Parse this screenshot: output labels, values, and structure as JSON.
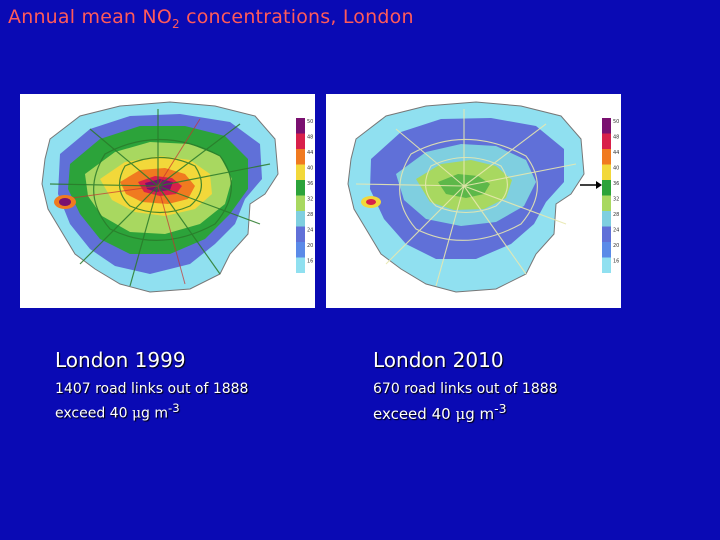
{
  "title": {
    "pre": "Annual mean NO",
    "sub": "2",
    "post": " concentrations, London"
  },
  "colors": {
    "background": "#0a0ab4",
    "title": "#ff5a5a",
    "caption": "#ffffff"
  },
  "legend": {
    "ticks": [
      "50",
      "48",
      "44",
      "40",
      "36",
      "32",
      "28",
      "24",
      "20",
      "16"
    ],
    "colors": [
      "#7a1070",
      "#d8204a",
      "#f07a20",
      "#f2d83a",
      "#2ca33a",
      "#a8d860",
      "#7fcfe0",
      "#6070d8",
      "#5a8ae8",
      "#90e0f0"
    ]
  },
  "maps": [
    {
      "id": "london-1999",
      "label": "London 1999",
      "line1": "1407 road links out of 1888",
      "line2_pre": "exceed 40 ",
      "line2_unit_mu": "μ",
      "line2_unit": "g m",
      "line2_exp": "-3"
    },
    {
      "id": "london-2010",
      "label": "London 2010",
      "line1": "670 road links out of 1888",
      "line2_pre": "exceed 40 ",
      "line2_unit_mu": "μ",
      "line2_unit": "g m",
      "line2_exp": "-3"
    }
  ]
}
